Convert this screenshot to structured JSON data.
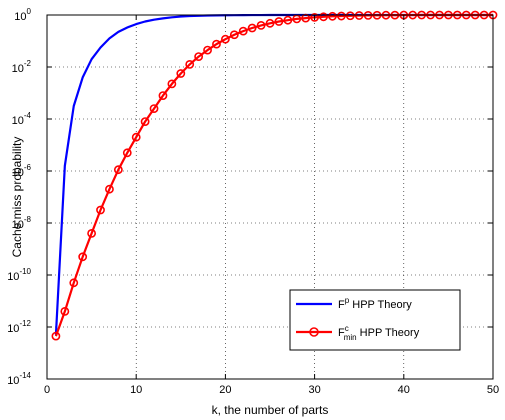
{
  "chart_data": {
    "type": "line",
    "xlabel": "k, the number of parts",
    "ylabel": "Cache miss probability",
    "xlim": [
      0,
      50
    ],
    "ylim_log10": [
      -14,
      0
    ],
    "y_scale": "log",
    "grid": true,
    "grid_style": "dotted",
    "legend_position": "bottom-right",
    "x_ticks": [
      0,
      10,
      20,
      30,
      40,
      50
    ],
    "y_tick_exponents": [
      -14,
      -12,
      -10,
      -8,
      -6,
      -4,
      -2,
      0
    ],
    "y_tick_base": "10",
    "series": [
      {
        "name_main": "F",
        "name_sup": "p",
        "name_sub": "",
        "name_rest": " HPP Theory",
        "color": "#0000ff",
        "marker": "none",
        "x": [
          1,
          2,
          3,
          4,
          5,
          6,
          7,
          8,
          9,
          10,
          11,
          12,
          13,
          14,
          15,
          16,
          17,
          18,
          19,
          20,
          21,
          22,
          23,
          24,
          25,
          26,
          27,
          28,
          29,
          30,
          31,
          32,
          33,
          34,
          35,
          36,
          37,
          38,
          39,
          40,
          41,
          42,
          43,
          44,
          45,
          46,
          47,
          48,
          49,
          50
        ],
        "y_log10": [
          -12.3,
          -5.8,
          -3.5,
          -2.4,
          -1.7,
          -1.25,
          -0.9,
          -0.65,
          -0.48,
          -0.35,
          -0.25,
          -0.18,
          -0.13,
          -0.09,
          -0.06,
          -0.04,
          -0.03,
          -0.02,
          -0.015,
          -0.01,
          -0.007,
          -0.005,
          -0.003,
          -0.002,
          -0.001,
          -0.001,
          0,
          0,
          0,
          0,
          0,
          0,
          0,
          0,
          0,
          0,
          0,
          0,
          0,
          0,
          0,
          0,
          0,
          0,
          0,
          0,
          0,
          0,
          0,
          0
        ]
      },
      {
        "name_main": "F",
        "name_sup": "c",
        "name_sub": "min",
        "name_rest": " HPP Theory",
        "color": "#ff0000",
        "marker": "circle",
        "x": [
          1,
          2,
          3,
          4,
          5,
          6,
          7,
          8,
          9,
          10,
          11,
          12,
          13,
          14,
          15,
          16,
          17,
          18,
          19,
          20,
          21,
          22,
          23,
          24,
          25,
          26,
          27,
          28,
          29,
          30,
          31,
          32,
          33,
          34,
          35,
          36,
          37,
          38,
          39,
          40,
          41,
          42,
          43,
          44,
          45,
          46,
          47,
          48,
          49,
          50
        ],
        "y_log10": [
          -12.35,
          -11.4,
          -10.3,
          -9.3,
          -8.4,
          -7.5,
          -6.7,
          -5.95,
          -5.3,
          -4.7,
          -4.1,
          -3.6,
          -3.1,
          -2.65,
          -2.25,
          -1.9,
          -1.6,
          -1.35,
          -1.12,
          -0.93,
          -0.76,
          -0.62,
          -0.5,
          -0.4,
          -0.32,
          -0.25,
          -0.2,
          -0.15,
          -0.12,
          -0.09,
          -0.07,
          -0.05,
          -0.04,
          -0.03,
          -0.02,
          -0.015,
          -0.01,
          -0.007,
          -0.005,
          -0.003,
          -0.002,
          -0.001,
          -0.001,
          0,
          0,
          0,
          0,
          0,
          0,
          0
        ]
      }
    ]
  }
}
